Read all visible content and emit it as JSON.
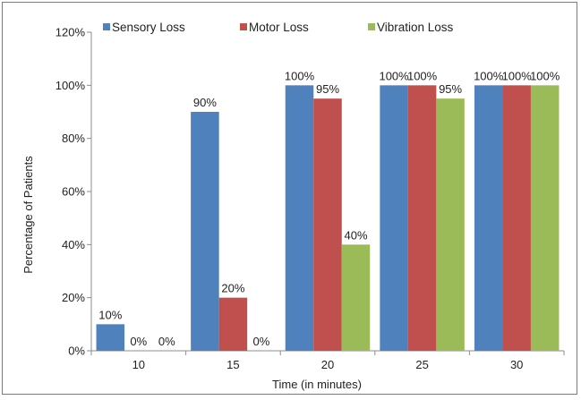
{
  "chart_data": {
    "type": "bar",
    "title": "",
    "xlabel": "Time (in minutes)",
    "ylabel": "Percentage of Patients",
    "ylim": [
      0,
      120
    ],
    "y_tick_step": 20,
    "y_tick_labels": [
      "0%",
      "20%",
      "40%",
      "60%",
      "80%",
      "100%",
      "120%"
    ],
    "grid": false,
    "legend_position": "top",
    "categories": [
      "10",
      "15",
      "20",
      "25",
      "30"
    ],
    "series": [
      {
        "name": "Sensory Loss",
        "color": "#4f81bd",
        "values": [
          10,
          90,
          100,
          100,
          100
        ],
        "labels": [
          "10%",
          "90%",
          "100%",
          "100%",
          "100%"
        ]
      },
      {
        "name": "Motor Loss",
        "color": "#c0504d",
        "values": [
          0,
          20,
          95,
          100,
          100
        ],
        "labels": [
          "0%",
          "20%",
          "95%",
          "100%",
          "100%"
        ]
      },
      {
        "name": "Vibration Loss",
        "color": "#9bbb59",
        "values": [
          0,
          0,
          40,
          95,
          100
        ],
        "labels": [
          "0%",
          "0%",
          "40%",
          "95%",
          "100%"
        ]
      }
    ]
  }
}
